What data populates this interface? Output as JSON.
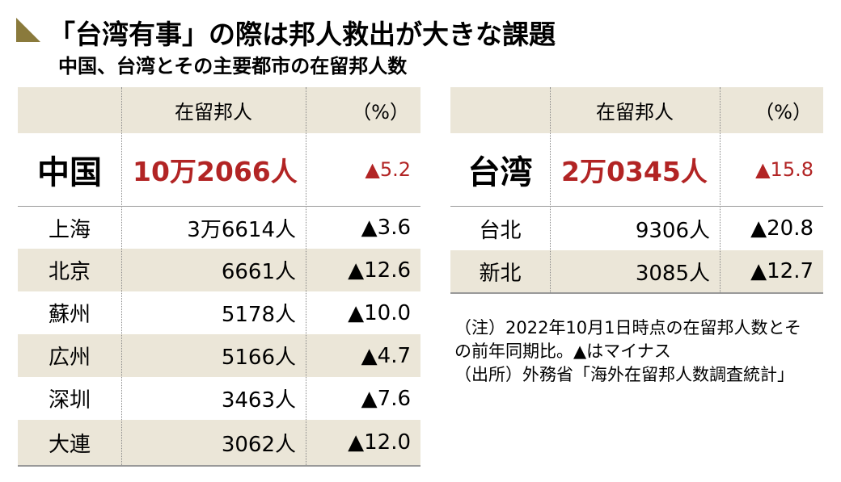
{
  "header": {
    "title": "「台湾有事」の際は邦人救出が大きな課題",
    "subtitle": "中国、台湾とその主要都市の在留邦人数"
  },
  "tables": [
    {
      "columns": [
        "在留邦人",
        "（%）"
      ],
      "total": {
        "name": "中国",
        "count": "10万2066人",
        "change": "▲5.2"
      },
      "rows": [
        [
          "上海",
          "3万6614人",
          "▲3.6"
        ],
        [
          "北京",
          "6661人",
          "▲12.6"
        ],
        [
          "蘇州",
          "5178人",
          "▲10.0"
        ],
        [
          "広州",
          "5166人",
          "▲4.7"
        ],
        [
          "深圳",
          "3463人",
          "▲7.6"
        ],
        [
          "大連",
          "3062人",
          "▲12.0"
        ]
      ]
    },
    {
      "columns": [
        "在留邦人",
        "（%）"
      ],
      "total": {
        "name": "台湾",
        "count": "2万0345人",
        "change": "▲15.8"
      },
      "rows": [
        [
          "台北",
          "9306人",
          "▲20.8"
        ],
        [
          "新北",
          "3085人",
          "▲12.7"
        ]
      ]
    }
  ],
  "notes": [
    "（注）2022年10月1日時点の在留邦人数とそ",
    "の前年同期比。▲はマイナス",
    "（出所）外務省「海外在留邦人数調査統計」"
  ]
}
